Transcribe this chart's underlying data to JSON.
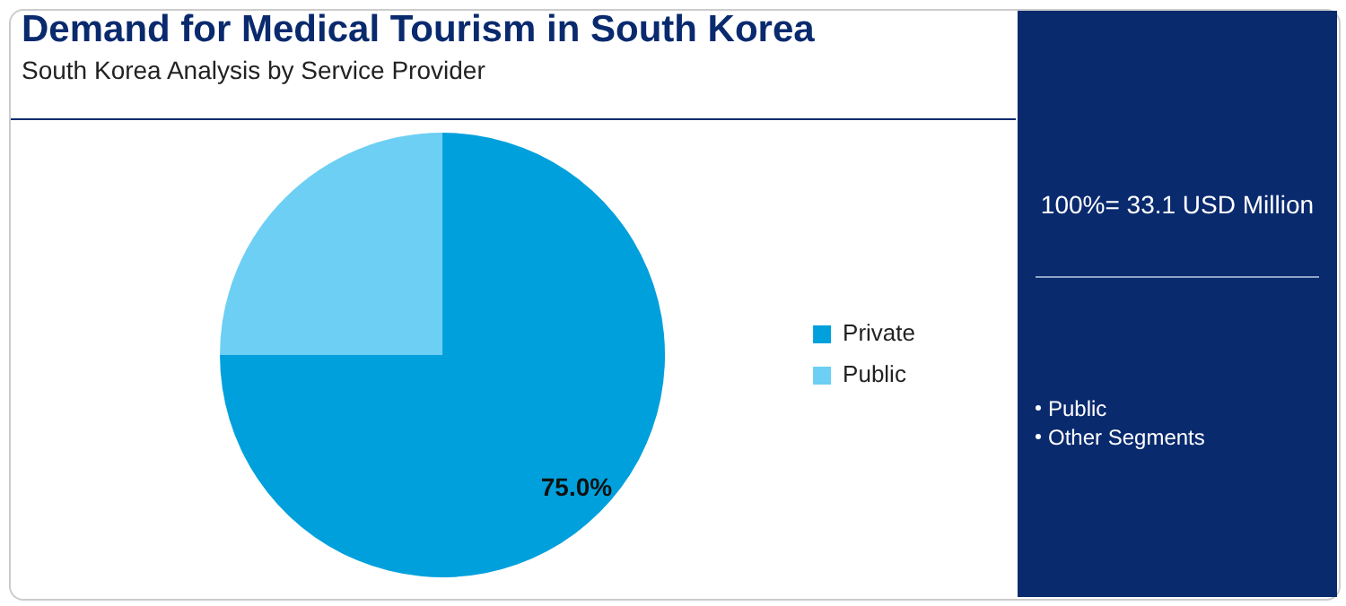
{
  "chart_data": {
    "type": "pie",
    "title": "Demand for Medical Tourism in South Korea",
    "subtitle": "South Korea Analysis by Service Provider",
    "categories": [
      "Private",
      "Public"
    ],
    "values": [
      75,
      25
    ],
    "colors": [
      "#00a0dc",
      "#6ccff3"
    ],
    "value_labels": [
      "75.0%",
      null
    ],
    "legend": "right",
    "annotations": [
      "100%= 33.1 USD Million",
      "Public",
      "Other Segments"
    ]
  }
}
